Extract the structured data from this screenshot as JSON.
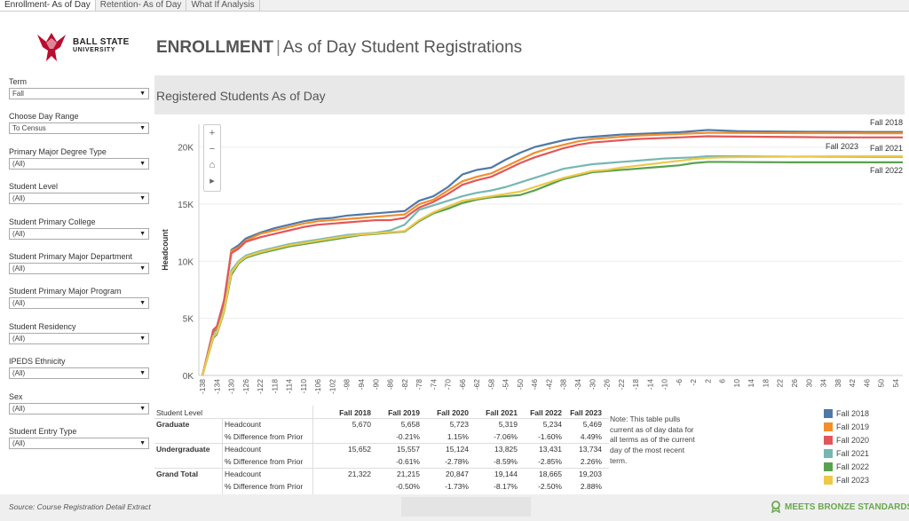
{
  "tabs": [
    "Enrollment- As of Day",
    "Retention- As of Day",
    "What If Analysis"
  ],
  "logo": {
    "line1": "BALL STATE",
    "line2": "UNIVERSITY"
  },
  "header": {
    "title_bold": "ENROLLMENT",
    "separator": "|",
    "title_rest": "As of Day Student Registrations"
  },
  "subtitle": "Registered Students As of Day",
  "filters": [
    {
      "label": "Term",
      "value": "Fall"
    },
    {
      "label": "Choose Day Range",
      "value": "To Census"
    },
    {
      "label": "Primary Major Degree Type",
      "value": "(All)"
    },
    {
      "label": "Student Level",
      "value": "(All)"
    },
    {
      "label": "Student Primary College",
      "value": "(All)"
    },
    {
      "label": "Student Primary Major Department",
      "value": "(All)"
    },
    {
      "label": "Student Primary Major Program",
      "value": "(All)"
    },
    {
      "label": "Student Residency",
      "value": "(All)"
    },
    {
      "label": "IPEDS Ethnicity",
      "value": "(All)"
    },
    {
      "label": "Sex",
      "value": "(All)"
    },
    {
      "label": "Student Entry Type",
      "value": "(All)"
    }
  ],
  "zoom_controls": [
    "+",
    "−",
    "⌂",
    "▸"
  ],
  "chart_data": {
    "type": "line",
    "ylabel": "Headcount",
    "xlabel": "",
    "ylim": [
      0,
      22000
    ],
    "xlim": [
      -139,
      56
    ],
    "y_ticks": [
      0,
      5000,
      10000,
      15000,
      20000
    ],
    "y_tick_labels": [
      "0K",
      "5K",
      "10K",
      "15K",
      "20K"
    ],
    "x_ticks": [
      -138,
      -134,
      -130,
      -126,
      -122,
      -118,
      -114,
      -110,
      -106,
      -102,
      -98,
      -94,
      -90,
      -86,
      -82,
      -78,
      -74,
      -70,
      -66,
      -62,
      -58,
      -54,
      -50,
      -46,
      -42,
      -38,
      -34,
      -30,
      -26,
      -22,
      -18,
      -14,
      -10,
      -6,
      -2,
      2,
      6,
      10,
      14,
      18,
      22,
      26,
      30,
      34,
      38,
      42,
      46,
      50,
      54
    ],
    "x": [
      -138,
      -135,
      -134,
      -132,
      -130,
      -128,
      -126,
      -122,
      -118,
      -114,
      -110,
      -106,
      -102,
      -98,
      -94,
      -90,
      -86,
      -82,
      -78,
      -74,
      -70,
      -66,
      -62,
      -58,
      -54,
      -50,
      -46,
      -42,
      -38,
      -34,
      -30,
      -26,
      -22,
      -18,
      -14,
      -10,
      -6,
      -2,
      2,
      6,
      10,
      14,
      18,
      22,
      26,
      30,
      34,
      38,
      42,
      46,
      50,
      56
    ],
    "series": [
      {
        "name": "Fall 2018",
        "color": "#4e79a7",
        "values": [
          0,
          3800,
          4100,
          6500,
          11000,
          11400,
          12000,
          12500,
          12900,
          13200,
          13500,
          13700,
          13800,
          14000,
          14100,
          14200,
          14300,
          14400,
          15300,
          15700,
          16500,
          17600,
          18000,
          18200,
          18900,
          19500,
          20000,
          20300,
          20600,
          20800,
          20900,
          21000,
          21100,
          21150,
          21200,
          21250,
          21300,
          21400,
          21500,
          21450,
          21400,
          21380,
          21370,
          21360,
          21350,
          21340,
          21340,
          21330,
          21330,
          21325,
          21322,
          21322
        ]
      },
      {
        "name": "Fall 2019",
        "color": "#f28e2b",
        "values": [
          0,
          3900,
          4200,
          6600,
          10900,
          11200,
          11800,
          12400,
          12700,
          13000,
          13300,
          13500,
          13600,
          13700,
          13800,
          13900,
          14000,
          14100,
          15000,
          15400,
          16200,
          17000,
          17400,
          17700,
          18300,
          18900,
          19500,
          19900,
          20200,
          20500,
          20700,
          20800,
          20900,
          21000,
          21050,
          21100,
          21150,
          21200,
          21250,
          21250,
          21240,
          21240,
          21230,
          21230,
          21225,
          21220,
          21220,
          21218,
          21216,
          21215,
          21215,
          21215
        ]
      },
      {
        "name": "Fall 2020",
        "color": "#e15759",
        "values": [
          0,
          4000,
          4300,
          6600,
          10700,
          11100,
          11700,
          12100,
          12400,
          12700,
          13000,
          13200,
          13300,
          13400,
          13500,
          13600,
          13600,
          13800,
          14700,
          15200,
          15900,
          16700,
          17100,
          17400,
          18000,
          18600,
          19100,
          19500,
          19900,
          20200,
          20400,
          20500,
          20600,
          20700,
          20750,
          20800,
          20850,
          20900,
          20950,
          20930,
          20920,
          20910,
          20900,
          20890,
          20880,
          20870,
          20860,
          20855,
          20850,
          20848,
          20847,
          20847
        ]
      },
      {
        "name": "Fall 2021",
        "color": "#76b7b2",
        "values": [
          0,
          3500,
          3800,
          5800,
          9200,
          10000,
          10500,
          10900,
          11200,
          11500,
          11700,
          11900,
          12100,
          12300,
          12400,
          12500,
          12700,
          13200,
          14500,
          14900,
          15300,
          15700,
          16000,
          16200,
          16500,
          16900,
          17300,
          17700,
          18100,
          18300,
          18500,
          18600,
          18700,
          18800,
          18900,
          19000,
          19050,
          19100,
          19200,
          19200,
          19190,
          19180,
          19175,
          19170,
          19165,
          19160,
          19155,
          19150,
          19148,
          19146,
          19144,
          19144
        ]
      },
      {
        "name": "Fall 2022",
        "color": "#59a14f",
        "values": [
          0,
          3300,
          3600,
          5600,
          8800,
          9800,
          10300,
          10700,
          11000,
          11300,
          11500,
          11700,
          11900,
          12100,
          12300,
          12400,
          12500,
          12600,
          13500,
          14200,
          14600,
          15100,
          15400,
          15600,
          15700,
          15800,
          16200,
          16700,
          17200,
          17500,
          17800,
          17900,
          18000,
          18100,
          18200,
          18300,
          18400,
          18600,
          18700,
          18700,
          18690,
          18680,
          18675,
          18670,
          18668,
          18667,
          18666,
          18666,
          18665,
          18665,
          18665,
          18665
        ]
      },
      {
        "name": "Fall 2023",
        "color": "#edc948",
        "values": [
          0,
          3400,
          3700,
          5700,
          9000,
          9900,
          10400,
          10800,
          11100,
          11400,
          11600,
          11800,
          12000,
          12200,
          12350,
          12450,
          12550,
          12650,
          13600,
          14300,
          14800,
          15300,
          15500,
          15700,
          15900,
          16100,
          16500,
          16900,
          17300,
          17600,
          17900,
          18000,
          18200,
          18350,
          18500,
          18650,
          18800,
          18950,
          19050,
          19100,
          19120,
          19130,
          19140,
          19150,
          19160,
          19170,
          19180,
          19190,
          19195,
          19200,
          19203,
          19203
        ]
      }
    ],
    "end_labels": [
      {
        "text": "Fall 2018",
        "series": "Fall 2018"
      },
      {
        "text": "Fall 2023",
        "series": "Fall 2023"
      },
      {
        "text": "Fall 2021",
        "series": "Fall 2021"
      },
      {
        "text": "Fall 2022",
        "series": "Fall 2022"
      }
    ]
  },
  "table": {
    "col_header": "Student Level",
    "years": [
      "Fall 2018",
      "Fall 2019",
      "Fall 2020",
      "Fall 2021",
      "Fall 2022",
      "Fall 2023"
    ],
    "groups": [
      {
        "name": "Graduate",
        "headcount_label": "Headcount",
        "pct_label": "% Difference from Prior",
        "headcount": [
          "5,670",
          "5,658",
          "5,723",
          "5,319",
          "5,234",
          "5,469"
        ],
        "pct": [
          "",
          "-0.21%",
          "1.15%",
          "-7.06%",
          "-1.60%",
          "4.49%"
        ]
      },
      {
        "name": "Undergraduate",
        "headcount_label": "Headcount",
        "pct_label": "% Difference from Prior",
        "headcount": [
          "15,652",
          "15,557",
          "15,124",
          "13,825",
          "13,431",
          "13,734"
        ],
        "pct": [
          "",
          "-0.61%",
          "-2.78%",
          "-8.59%",
          "-2.85%",
          "2.26%"
        ]
      },
      {
        "name": "Grand Total",
        "headcount_label": "Headcount",
        "pct_label": "% Difference from Prior",
        "headcount": [
          "21,322",
          "21,215",
          "20,847",
          "19,144",
          "18,665",
          "19,203"
        ],
        "pct": [
          "",
          "-0.50%",
          "-1.73%",
          "-8.17%",
          "-2.50%",
          "2.88%"
        ]
      }
    ]
  },
  "note": "Note: This table pulls current as of day data for all terms as of the current day of the most recent term.",
  "legend": [
    {
      "label": "Fall 2018",
      "color": "#4e79a7"
    },
    {
      "label": "Fall 2019",
      "color": "#f28e2b"
    },
    {
      "label": "Fall 2020",
      "color": "#e15759"
    },
    {
      "label": "Fall 2021",
      "color": "#76b7b2"
    },
    {
      "label": "Fall 2022",
      "color": "#59a14f"
    },
    {
      "label": "Fall 2023",
      "color": "#edc948"
    }
  ],
  "footer": {
    "source": "Source: Course Registration Detail Extract",
    "badge": "MEETS BRONZE STANDARDS"
  }
}
